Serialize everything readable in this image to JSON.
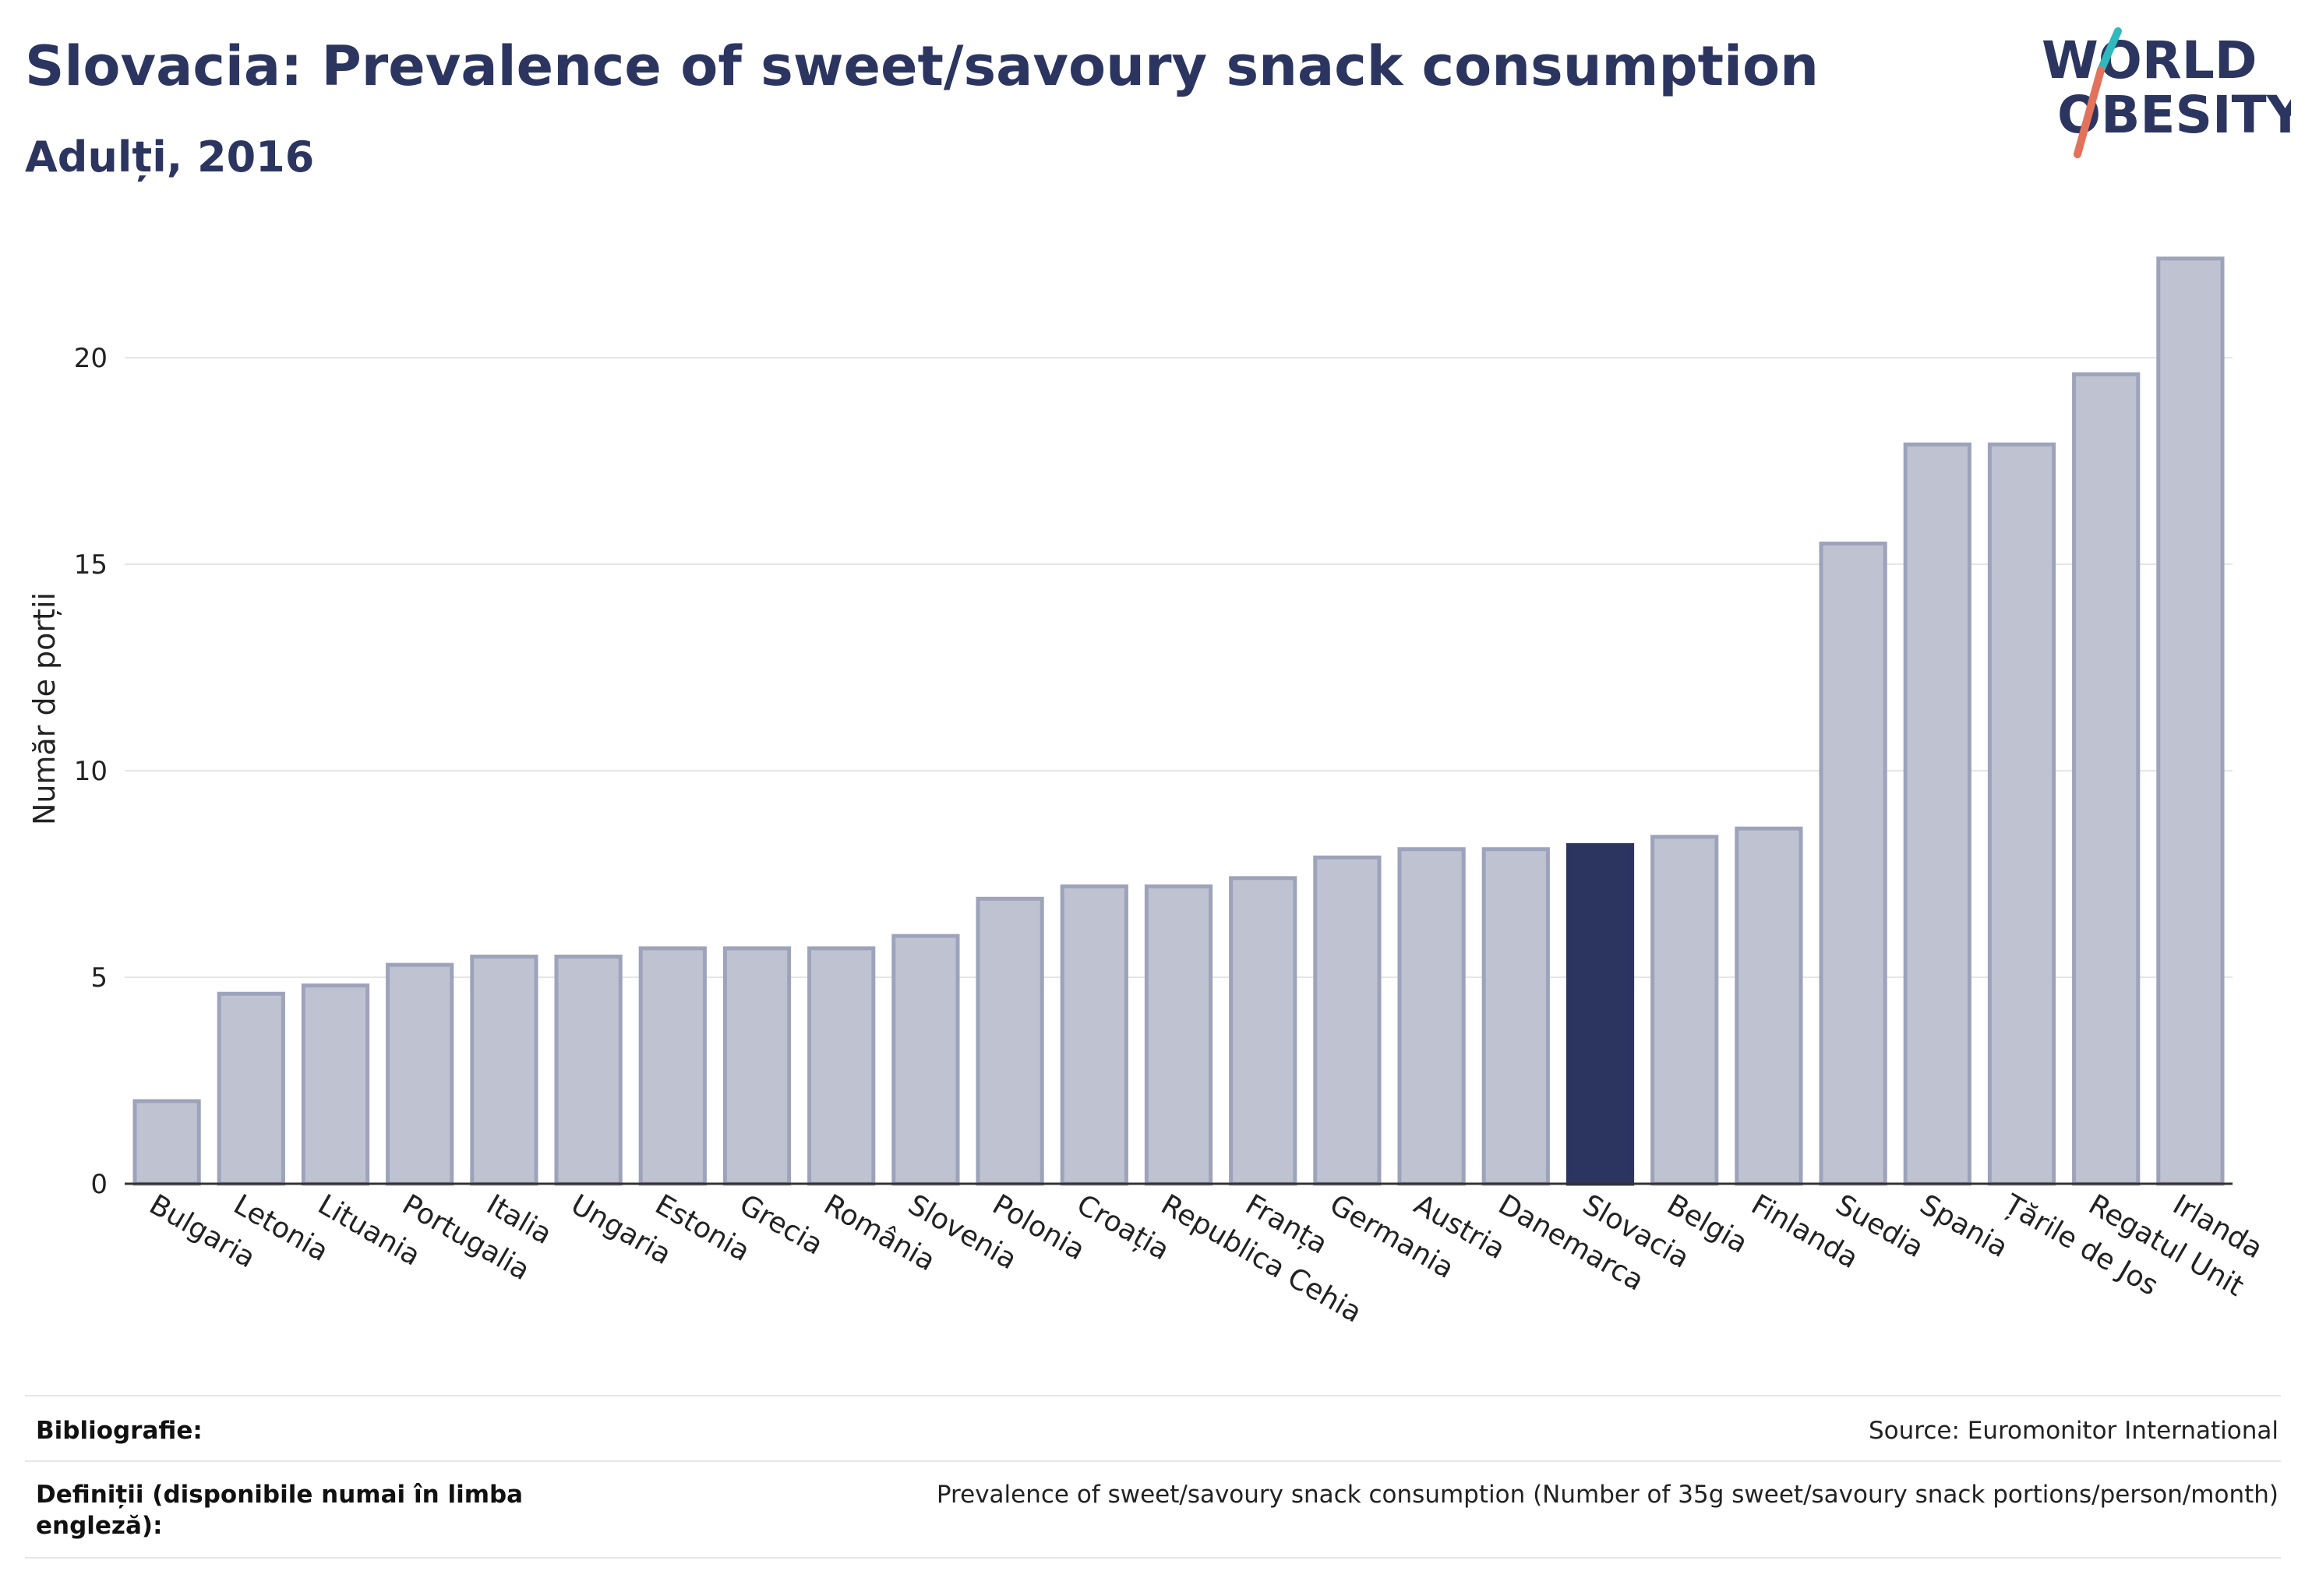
{
  "header": {
    "title": "Slovacia: Prevalence of sweet/savoury snack consumption",
    "subtitle": "Adulți, 2016"
  },
  "logo": {
    "line1": "WORLD",
    "line2": "OBESITY",
    "accent_teal": "#2fb9bd",
    "accent_red": "#e2725b"
  },
  "chart_data": {
    "type": "bar",
    "title": "Slovacia: Prevalence of sweet/savoury snack consumption",
    "subtitle": "Adulți, 2016",
    "xlabel": "",
    "ylabel": "Număr de porții",
    "ylim": [
      0,
      23
    ],
    "yticks": [
      0,
      5,
      10,
      15,
      20
    ],
    "grid": true,
    "categories": [
      "Bulgaria",
      "Letonia",
      "Lituania",
      "Portugalia",
      "Italia",
      "Ungaria",
      "Estonia",
      "Grecia",
      "România",
      "Slovenia",
      "Polonia",
      "Croația",
      "Republica Cehia",
      "Franța",
      "Germania",
      "Austria",
      "Danemarca",
      "Slovacia",
      "Belgia",
      "Finlanda",
      "Suedia",
      "Spania",
      "Țările de Jos",
      "Regatul Unit",
      "Irlanda"
    ],
    "values": [
      2.0,
      4.6,
      4.8,
      5.3,
      5.5,
      5.5,
      5.7,
      5.7,
      5.7,
      6.0,
      6.9,
      7.2,
      7.2,
      7.4,
      7.9,
      8.1,
      8.1,
      8.2,
      8.4,
      8.6,
      15.5,
      17.9,
      17.9,
      19.6,
      22.4
    ],
    "highlight": "Slovacia",
    "colors": {
      "bar": "#bfc3d1",
      "bar_stroke": "#9da3ba",
      "highlight": "#2b3560",
      "grid": "#e6e6e6",
      "axis": "#333333"
    }
  },
  "footer": {
    "bibliography_label": "Bibliografie:",
    "bibliography_value": "Source: Euromonitor International",
    "definitions_label": "Definiții (disponibile numai în limba engleză):",
    "definitions_value": "Prevalence of sweet/savoury snack consumption (Number of 35g sweet/savoury snack portions/person/month)"
  }
}
